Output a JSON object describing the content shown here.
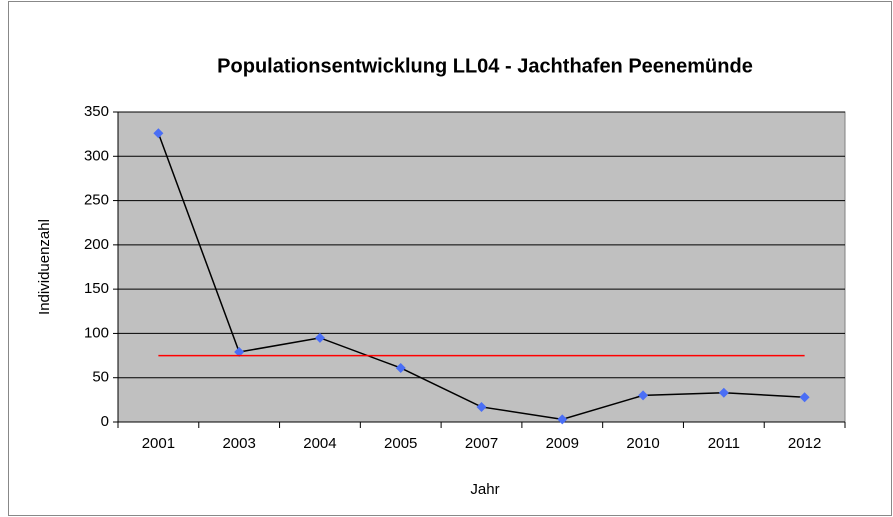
{
  "chart_data": {
    "type": "line",
    "title": "Populationsentwicklung LL04 - Jachthafen Peenemünde",
    "x_label": "Jahr",
    "y_label": "Individuenzahl",
    "categories": [
      "2001",
      "2003",
      "2004",
      "2005",
      "2007",
      "2009",
      "2010",
      "2011",
      "2012"
    ],
    "series": [
      {
        "color": "#000000",
        "marker_color": "#4a6ef5",
        "markers": true,
        "values": [
          326,
          79,
          95,
          61,
          17,
          3,
          30,
          33,
          28
        ]
      },
      {
        "color": "#ff0000",
        "markers": false,
        "values": [
          75,
          75,
          75,
          75,
          75,
          75,
          75,
          75,
          75
        ]
      }
    ],
    "ylim": [
      0,
      350
    ],
    "yticks": [
      0,
      50,
      100,
      150,
      200,
      250,
      300,
      350
    ],
    "grid": true,
    "plot_background": "#c0c0c0"
  }
}
